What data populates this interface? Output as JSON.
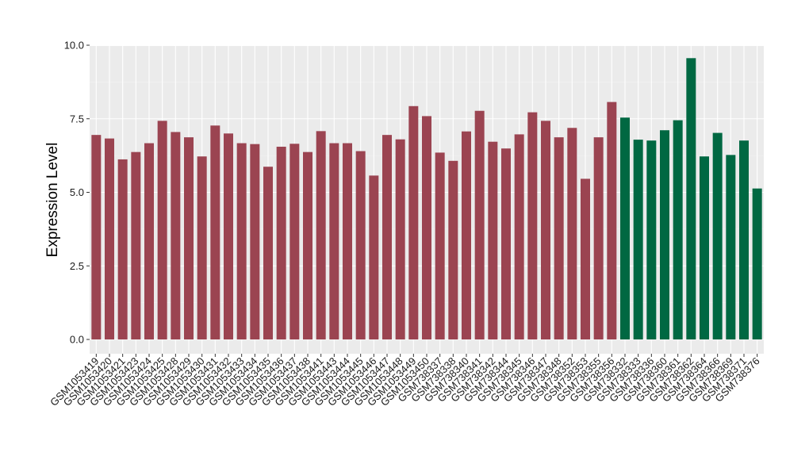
{
  "chart_data": {
    "type": "bar",
    "ylabel": "Expression Level",
    "xlabel": "",
    "ylim": [
      0,
      10
    ],
    "yticks": [
      "0.0",
      "2.5",
      "5.0",
      "7.5",
      "10.0"
    ],
    "grid": true,
    "background": "#ebebeb",
    "colors": {
      "group1": "#9b4451",
      "group2": "#006842"
    },
    "categories": [
      "GSM1053419",
      "GSM1053420",
      "GSM1053421",
      "GSM1053423",
      "GSM1053424",
      "GSM1053425",
      "GSM1053428",
      "GSM1053429",
      "GSM1053430",
      "GSM1053431",
      "GSM1053432",
      "GSM1053433",
      "GSM1053434",
      "GSM1053435",
      "GSM1053436",
      "GSM1053437",
      "GSM1053438",
      "GSM1053441",
      "GSM1053443",
      "GSM1053444",
      "GSM1053445",
      "GSM1053446",
      "GSM1053447",
      "GSM1053448",
      "GSM1053449",
      "GSM1053450",
      "GSM738337",
      "GSM738338",
      "GSM738340",
      "GSM738341",
      "GSM738342",
      "GSM738344",
      "GSM738345",
      "GSM738346",
      "GSM738347",
      "GSM738348",
      "GSM738352",
      "GSM738353",
      "GSM738355",
      "GSM738356",
      "GSM738332",
      "GSM738333",
      "GSM738336",
      "GSM738360",
      "GSM738361",
      "GSM738362",
      "GSM738364",
      "GSM738366",
      "GSM738369",
      "GSM738371",
      "GSM738376"
    ],
    "values": [
      6.95,
      6.83,
      6.12,
      6.37,
      6.67,
      7.43,
      7.05,
      6.87,
      6.22,
      7.27,
      7.0,
      6.67,
      6.64,
      5.87,
      6.55,
      6.65,
      6.37,
      7.08,
      6.67,
      6.67,
      6.4,
      5.57,
      6.95,
      6.8,
      7.93,
      7.59,
      6.35,
      6.07,
      7.07,
      7.77,
      6.72,
      6.49,
      6.97,
      7.72,
      7.43,
      6.87,
      7.19,
      5.46,
      6.87,
      8.07,
      7.54,
      6.79,
      6.76,
      7.11,
      7.45,
      9.56,
      6.22,
      7.02,
      6.27,
      6.76,
      5.13
    ],
    "groups": [
      1,
      1,
      1,
      1,
      1,
      1,
      1,
      1,
      1,
      1,
      1,
      1,
      1,
      1,
      1,
      1,
      1,
      1,
      1,
      1,
      1,
      1,
      1,
      1,
      1,
      1,
      1,
      1,
      1,
      1,
      1,
      1,
      1,
      1,
      1,
      1,
      1,
      1,
      1,
      1,
      2,
      2,
      2,
      2,
      2,
      2,
      2,
      2,
      2,
      2,
      2
    ]
  }
}
